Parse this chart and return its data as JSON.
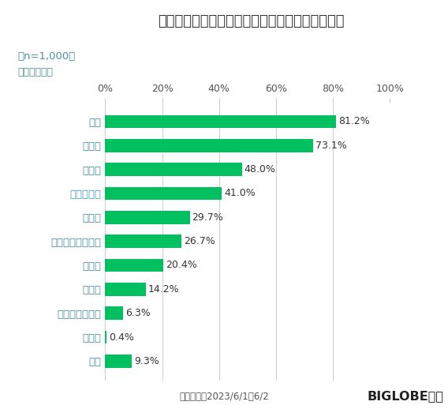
{
  "title": "価格の上昇が生活に影響があると感じているもの",
  "subtitle1": "（n=1,000）",
  "subtitle2": "（複数回答）",
  "categories": [
    "食費",
    "電気代",
    "ガス代",
    "ガソリン代",
    "水道代",
    "趣味・レジャー費",
    "交通費",
    "通信費",
    "教育・習い事費",
    "その他",
    "なし"
  ],
  "values": [
    81.2,
    73.1,
    48.0,
    41.0,
    29.7,
    26.7,
    20.4,
    14.2,
    6.3,
    0.4,
    9.3
  ],
  "bar_color": "#00c060",
  "background_color": "#ffffff",
  "label_color": "#4a8fa8",
  "gasoline_color": "#4a9fbe",
  "title_color": "#333333",
  "value_color": "#333333",
  "grid_color": "#cccccc",
  "xlim": [
    0,
    100
  ],
  "xticks": [
    0,
    20,
    40,
    60,
    80,
    100
  ],
  "xtick_labels": [
    "0%",
    "20%",
    "40%",
    "60%",
    "80%",
    "100%"
  ],
  "footer_left": "調査期間：2023/6/1～6/2",
  "footer_right": "BIGLOBE調べ",
  "title_fontsize": 13,
  "label_fontsize": 9.5,
  "value_fontsize": 9,
  "tick_fontsize": 9,
  "footer_fontsize": 8.5
}
